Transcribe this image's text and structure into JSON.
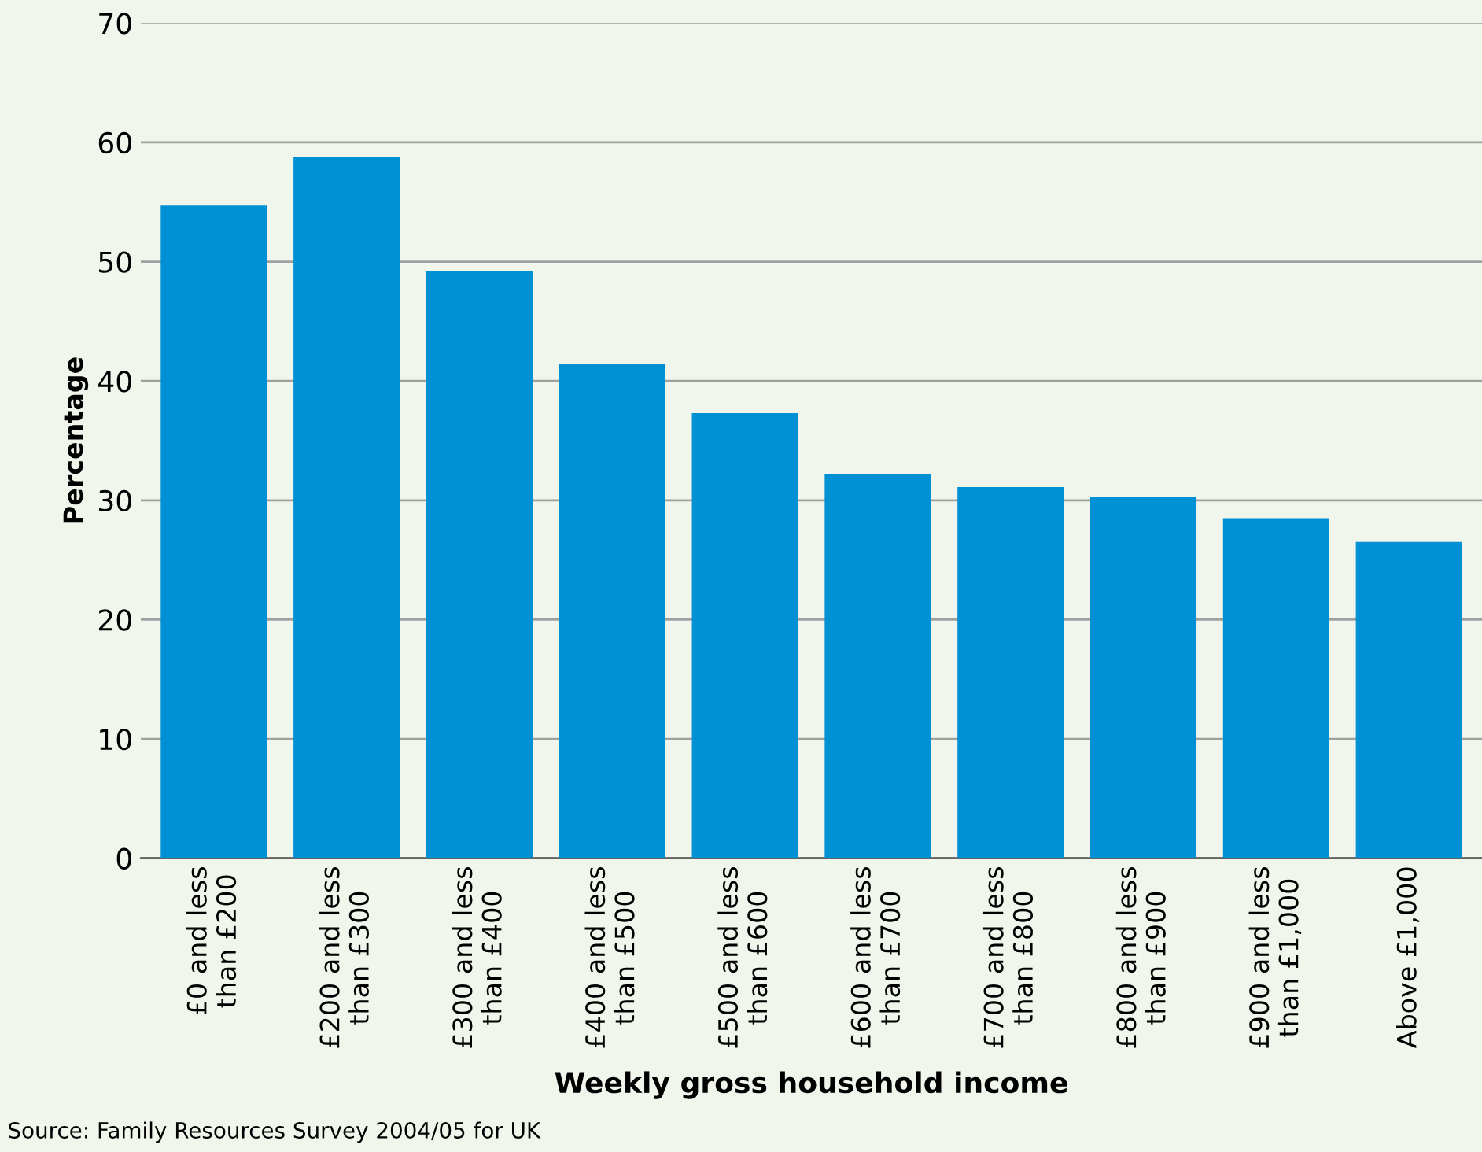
{
  "chart_data": {
    "type": "bar",
    "xlabel": "Weekly gross household income",
    "ylabel": "Percentage",
    "categories": [
      "£0 and less\nthan £200",
      "£200 and less\nthan £300",
      "£300 and less\nthan £400",
      "£400 and less\nthan £500",
      "£500 and less\nthan £600",
      "£600 and less\nthan £700",
      "£700 and less\nthan £800",
      "£800 and less\nthan £900",
      "£900 and less\nthan £1,000",
      "Above £1,000"
    ],
    "values": [
      54.7,
      58.8,
      49.2,
      41.4,
      37.3,
      32.2,
      31.1,
      30.3,
      28.5,
      26.5
    ],
    "color": "#0090d4",
    "ylim": [
      0,
      70
    ],
    "yticks": [
      0,
      10,
      20,
      30,
      40,
      50,
      60,
      70
    ],
    "grid": "y",
    "annotations": [
      "Source: Family Resources Survey 2004/05 for UK"
    ]
  }
}
